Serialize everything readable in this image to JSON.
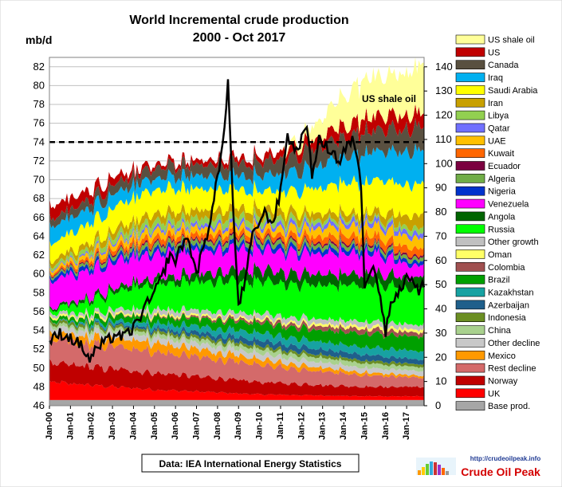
{
  "chart_data": {
    "type": "area",
    "title": "World Incremental crude production",
    "subtitle": "2000 - Oct 2017",
    "ylabel": "mb/d",
    "ylim": [
      46,
      83
    ],
    "y_ticks": [
      "46",
      "48",
      "50",
      "52",
      "54",
      "56",
      "58",
      "60",
      "62",
      "64",
      "66",
      "68",
      "70",
      "72",
      "74",
      "76",
      "78",
      "80",
      "82"
    ],
    "y2lim": [
      0,
      140
    ],
    "y2_ticks": [
      "0",
      "10",
      "20",
      "30",
      "40",
      "50",
      "60",
      "70",
      "80",
      "90",
      "100",
      "110",
      "120",
      "130",
      "140"
    ],
    "x_ticks": [
      "Jan-00",
      "Jan-01",
      "Jan-02",
      "Jan-03",
      "Jan-04",
      "Jan-05",
      "Jan-06",
      "Jan-07",
      "Jan-08",
      "Jan-09",
      "Jan-10",
      "Jan-11",
      "Jan-12",
      "Jan-13",
      "Jan-14",
      "Jan-15",
      "Jan-16",
      "Jan-17"
    ],
    "x_year_range": [
      2000,
      2017.83
    ],
    "reference_line": {
      "value": 74,
      "style": "dashed"
    },
    "annotation": "US shale oil",
    "legend_position": "right",
    "series": [
      {
        "name": "Base prod.",
        "color": "#a6a6a6",
        "x": [
          2000,
          2005,
          2010,
          2015,
          2017.8
        ],
        "values": [
          46.6,
          46.6,
          46.6,
          46.6,
          46.6
        ]
      },
      {
        "name": "UK",
        "color": "#ff0000",
        "x": [
          2000,
          2005,
          2010,
          2015,
          2017.8
        ],
        "values": [
          1.9,
          1.1,
          0.6,
          0.4,
          0.4
        ]
      },
      {
        "name": "Norway",
        "color": "#c00000",
        "x": [
          2000,
          2005,
          2010,
          2015,
          2017.8
        ],
        "values": [
          2.0,
          1.8,
          1.3,
          1.0,
          1.0
        ]
      },
      {
        "name": "Rest decline",
        "color": "#d46a6a",
        "x": [
          2000,
          2005,
          2010,
          2015,
          2017.8
        ],
        "values": [
          2.5,
          2.3,
          1.8,
          1.2,
          1.0
        ]
      },
      {
        "name": "Mexico",
        "color": "#ff9900",
        "x": [
          2000,
          2005,
          2010,
          2015,
          2017.8
        ],
        "values": [
          0.6,
          1.0,
          0.6,
          0.3,
          0.2
        ]
      },
      {
        "name": "Other decline",
        "color": "#c8c8c8",
        "x": [
          2000,
          2005,
          2010,
          2015,
          2017.8
        ],
        "values": [
          0.6,
          0.6,
          0.6,
          0.5,
          0.5
        ]
      },
      {
        "name": "China",
        "color": "#a9d18e",
        "x": [
          2000,
          2005,
          2010,
          2015,
          2017.8
        ],
        "values": [
          0.3,
          0.4,
          0.5,
          0.5,
          0.4
        ]
      },
      {
        "name": "Indonesia",
        "color": "#6b8e23",
        "x": [
          2000,
          2005,
          2010,
          2015,
          2017.8
        ],
        "values": [
          0.3,
          0.3,
          0.3,
          0.3,
          0.3
        ]
      },
      {
        "name": "Azerbaijan",
        "color": "#1f5f8b",
        "x": [
          2000,
          2005,
          2010,
          2015,
          2017.8
        ],
        "values": [
          0.0,
          0.3,
          0.6,
          0.6,
          0.5
        ]
      },
      {
        "name": "Kazakhstan",
        "color": "#17a2a2",
        "x": [
          2000,
          2005,
          2010,
          2015,
          2017.8
        ],
        "values": [
          0.0,
          0.5,
          0.8,
          0.8,
          0.9
        ]
      },
      {
        "name": "Brazil",
        "color": "#00a000",
        "x": [
          2000,
          2005,
          2010,
          2015,
          2017.8
        ],
        "values": [
          0.3,
          0.7,
          1.0,
          1.4,
          1.6
        ]
      },
      {
        "name": "Colombia",
        "color": "#a05050",
        "x": [
          2000,
          2005,
          2010,
          2015,
          2017.8
        ],
        "values": [
          0.0,
          0.1,
          0.3,
          0.5,
          0.4
        ]
      },
      {
        "name": "Oman",
        "color": "#ffff66",
        "x": [
          2000,
          2005,
          2010,
          2015,
          2017.8
        ],
        "values": [
          0.2,
          0.2,
          0.2,
          0.3,
          0.3
        ]
      },
      {
        "name": "Other growth",
        "color": "#c0c0c0",
        "x": [
          2000,
          2005,
          2010,
          2015,
          2017.8
        ],
        "values": [
          0.3,
          0.5,
          0.5,
          0.5,
          0.5
        ]
      },
      {
        "name": "Russia",
        "color": "#00ff00",
        "x": [
          2000,
          2005,
          2010,
          2015,
          2017.8
        ],
        "values": [
          0.3,
          2.8,
          3.4,
          3.8,
          3.9
        ]
      },
      {
        "name": "Angola",
        "color": "#006400",
        "x": [
          2000,
          2005,
          2010,
          2015,
          2017.8
        ],
        "values": [
          0.2,
          0.6,
          1.2,
          1.2,
          1.1
        ]
      },
      {
        "name": "Venezuela",
        "color": "#ff00ff",
        "x": [
          2000,
          2005,
          2010,
          2015,
          2017.8
        ],
        "values": [
          3.0,
          2.6,
          2.2,
          2.2,
          1.2
        ]
      },
      {
        "name": "Nigeria",
        "color": "#0033cc",
        "x": [
          2000,
          2005,
          2010,
          2015,
          2017.8
        ],
        "values": [
          0.4,
          0.5,
          0.5,
          0.5,
          0.4
        ]
      },
      {
        "name": "Algeria",
        "color": "#70ad47",
        "x": [
          2000,
          2005,
          2010,
          2015,
          2017.8
        ],
        "values": [
          0.2,
          0.5,
          0.5,
          0.4,
          0.4
        ]
      },
      {
        "name": "Ecuador",
        "color": "#7b0040",
        "x": [
          2000,
          2005,
          2010,
          2015,
          2017.8
        ],
        "values": [
          0.1,
          0.2,
          0.2,
          0.2,
          0.2
        ]
      },
      {
        "name": "Kuwait",
        "color": "#ff6600",
        "x": [
          2000,
          2005,
          2010,
          2015,
          2017.8
        ],
        "values": [
          0.2,
          0.6,
          0.5,
          0.8,
          0.8
        ]
      },
      {
        "name": "UAE",
        "color": "#ffc000",
        "x": [
          2000,
          2005,
          2010,
          2015,
          2017.8
        ],
        "values": [
          0.3,
          0.7,
          0.6,
          1.1,
          1.1
        ]
      },
      {
        "name": "Qatar",
        "color": "#7070ff",
        "x": [
          2000,
          2005,
          2010,
          2015,
          2017.8
        ],
        "values": [
          0.1,
          0.3,
          0.4,
          0.5,
          0.5
        ]
      },
      {
        "name": "Libya",
        "color": "#92d050",
        "x": [
          2000,
          2005,
          2010,
          2015,
          2017.8
        ],
        "values": [
          0.3,
          0.7,
          0.7,
          0.2,
          0.6
        ]
      },
      {
        "name": "Iran",
        "color": "#c8a000",
        "x": [
          2000,
          2005,
          2010,
          2015,
          2017.8
        ],
        "values": [
          0.5,
          0.8,
          0.9,
          0.6,
          1.4
        ]
      },
      {
        "name": "Saudi Arabia",
        "color": "#ffff00",
        "x": [
          2000,
          2005,
          2010,
          2015,
          2017.8
        ],
        "values": [
          1.8,
          2.6,
          1.8,
          3.4,
          3.2
        ]
      },
      {
        "name": "Iraq",
        "color": "#00b0f0",
        "x": [
          2000,
          2005,
          2010,
          2015,
          2017.8
        ],
        "values": [
          1.8,
          1.2,
          1.6,
          3.1,
          3.6
        ]
      },
      {
        "name": "Canada",
        "color": "#595040",
        "x": [
          2000,
          2005,
          2010,
          2015,
          2017.8
        ],
        "values": [
          0.8,
          1.1,
          1.4,
          2.2,
          2.5
        ]
      },
      {
        "name": "US",
        "color": "#c00000",
        "x": [
          2000,
          2005,
          2010,
          2015,
          2017.8
        ],
        "values": [
          1.4,
          0.4,
          0.6,
          1.5,
          1.5
        ]
      },
      {
        "name": "US shale oil",
        "color": "#ffff99",
        "x": [
          2000,
          2011,
          2012,
          2013,
          2014,
          2015,
          2016,
          2017,
          2017.8
        ],
        "values": [
          0,
          0,
          0.8,
          2.0,
          3.2,
          4.3,
          4.2,
          4.6,
          5.4
        ]
      }
    ],
    "price_series": {
      "axis": "secondary",
      "color": "#000000",
      "x": [
        2000.0,
        2000.5,
        2001.0,
        2001.5,
        2001.9,
        2002.3,
        2002.8,
        2003.2,
        2003.5,
        2004.0,
        2004.5,
        2004.9,
        2005.3,
        2005.7,
        2006.0,
        2006.5,
        2006.8,
        2007.0,
        2007.5,
        2007.9,
        2008.2,
        2008.5,
        2008.8,
        2009.0,
        2009.3,
        2009.6,
        2009.9,
        2010.3,
        2010.6,
        2011.0,
        2011.3,
        2011.7,
        2012.0,
        2012.2,
        2012.5,
        2012.8,
        2013.0,
        2013.5,
        2013.8,
        2014.0,
        2014.5,
        2014.8,
        2015.0,
        2015.4,
        2015.7,
        2016.0,
        2016.3,
        2016.7,
        2017.0,
        2017.3,
        2017.6,
        2017.8
      ],
      "values": [
        26,
        30,
        28,
        25,
        19,
        24,
        27,
        30,
        28,
        32,
        40,
        45,
        52,
        62,
        60,
        70,
        62,
        55,
        70,
        90,
        103,
        134,
        70,
        42,
        50,
        68,
        75,
        80,
        75,
        88,
        112,
        105,
        110,
        118,
        95,
        110,
        108,
        105,
        100,
        105,
        110,
        96,
        50,
        60,
        47,
        30,
        45,
        47,
        55,
        51,
        46,
        51
      ]
    }
  }
}
